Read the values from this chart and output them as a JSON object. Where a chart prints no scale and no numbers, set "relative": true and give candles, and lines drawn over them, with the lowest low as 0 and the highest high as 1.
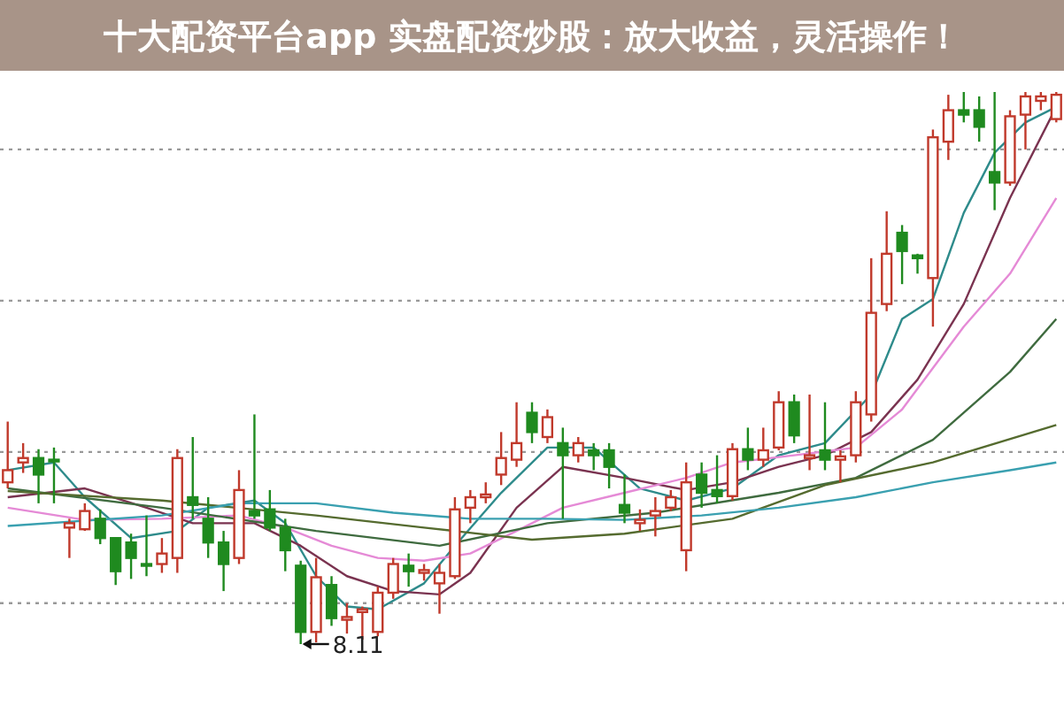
{
  "chart_data": {
    "type": "candlestick",
    "title": "十大配资平台app 实盘配资炒股：放大收益，灵活操作！",
    "relative": true,
    "categories": [
      null,
      null,
      null,
      null,
      null,
      null,
      null,
      null,
      null,
      null,
      null,
      null,
      null,
      null,
      null,
      null,
      null,
      null,
      null,
      null,
      null,
      null,
      null,
      null,
      null,
      null,
      null,
      null,
      null,
      null,
      null,
      null,
      null,
      null,
      null,
      null,
      null,
      null,
      null,
      null,
      null,
      null,
      null,
      null,
      null,
      null,
      null,
      null,
      null,
      null,
      null,
      null,
      null,
      null,
      null,
      null,
      null,
      null,
      null,
      null,
      null,
      null,
      null,
      null,
      null,
      null,
      null,
      null,
      null
    ],
    "ohlc": [
      [
        0.293,
        0.403,
        0.282,
        0.315
      ],
      [
        0.329,
        0.364,
        0.31,
        0.337
      ],
      [
        0.337,
        0.353,
        0.255,
        0.307
      ],
      [
        0.334,
        0.356,
        0.255,
        0.332
      ],
      [
        0.211,
        0.227,
        0.156,
        0.219
      ],
      [
        0.208,
        0.255,
        0.205,
        0.241
      ],
      [
        0.227,
        0.244,
        0.181,
        0.192
      ],
      [
        0.192,
        0.192,
        0.107,
        0.132
      ],
      [
        0.184,
        0.2,
        0.118,
        0.156
      ],
      [
        0.145,
        0.233,
        0.123,
        0.142
      ],
      [
        0.145,
        0.192,
        0.129,
        0.164
      ],
      [
        0.156,
        0.353,
        0.129,
        0.337
      ],
      [
        0.266,
        0.375,
        0.227,
        0.252
      ],
      [
        0.227,
        0.266,
        0.156,
        0.184
      ],
      [
        0.184,
        0.205,
        0.096,
        0.145
      ],
      [
        0.156,
        0.315,
        0.145,
        0.279
      ],
      [
        0.241,
        0.416,
        0.227,
        0.233
      ],
      [
        0.244,
        0.279,
        0.205,
        0.211
      ],
      [
        0.211,
        0.227,
        0.132,
        0.17
      ],
      [
        0.142,
        0.151,
        0,
        0.022
      ],
      [
        0.022,
        0.156,
        0.003,
        0.121
      ],
      [
        0.107,
        0.123,
        0.033,
        0.047
      ],
      [
        0.044,
        0.074,
        0.019,
        0.049
      ],
      [
        0.058,
        0.068,
        0.008,
        0.063
      ],
      [
        0.022,
        0.104,
        0.014,
        0.093
      ],
      [
        0.093,
        0.156,
        0.082,
        0.145
      ],
      [
        0.142,
        0.164,
        0.104,
        0.132
      ],
      [
        0.129,
        0.145,
        0.115,
        0.134
      ],
      [
        0.11,
        0.145,
        0.055,
        0.129
      ],
      [
        0.123,
        0.266,
        0.118,
        0.244
      ],
      [
        0.247,
        0.279,
        0.219,
        0.266
      ],
      [
        0.266,
        0.293,
        0.255,
        0.271
      ],
      [
        0.307,
        0.384,
        0.288,
        0.337
      ],
      [
        0.334,
        0.438,
        0.321,
        0.364
      ],
      [
        0.419,
        0.438,
        0.364,
        0.384
      ],
      [
        0.375,
        0.425,
        0.364,
        0.411
      ],
      [
        0.364,
        0.392,
        0.227,
        0.342
      ],
      [
        0.342,
        0.375,
        0.329,
        0.364
      ],
      [
        0.351,
        0.364,
        0.315,
        0.342
      ],
      [
        0.351,
        0.364,
        0.282,
        0.321
      ],
      [
        0.252,
        0.307,
        0.219,
        0.238
      ],
      [
        0.219,
        0.244,
        0.205,
        0.225
      ],
      [
        0.233,
        0.266,
        0.195,
        0.241
      ],
      [
        0.247,
        0.279,
        0.241,
        0.266
      ],
      [
        0.17,
        0.329,
        0.132,
        0.293
      ],
      [
        0.307,
        0.329,
        0.247,
        0.274
      ],
      [
        0.279,
        0.342,
        0.255,
        0.268
      ],
      [
        0.268,
        0.364,
        0.26,
        0.353
      ],
      [
        0.353,
        0.392,
        0.315,
        0.334
      ],
      [
        0.334,
        0.392,
        0.321,
        0.351
      ],
      [
        0.356,
        0.458,
        0.351,
        0.438
      ],
      [
        0.438,
        0.452,
        0.364,
        0.378
      ],
      [
        0.337,
        0.452,
        0.315,
        0.342
      ],
      [
        0.351,
        0.438,
        0.315,
        0.334
      ],
      [
        0.334,
        0.351,
        0.293,
        0.34
      ],
      [
        0.342,
        0.458,
        0.329,
        0.438
      ],
      [
        0.416,
        0.699,
        0.403,
        0.6
      ],
      [
        0.616,
        0.784,
        0.603,
        0.707
      ],
      [
        0.745,
        0.759,
        0.652,
        0.712
      ],
      [
        0.704,
        0.707,
        0.671,
        0.699
      ],
      [
        0.663,
        0.932,
        0.575,
        0.918
      ],
      [
        0.91,
        0.995,
        0.877,
        0.967
      ],
      [
        0.967,
        1,
        0.945,
        0.959
      ],
      [
        0.967,
        0.992,
        0.91,
        0.937
      ],
      [
        0.855,
        1,
        0.786,
        0.836
      ],
      [
        0.836,
        0.967,
        0.83,
        0.956
      ],
      [
        0.959,
        1,
        0.896,
        0.992
      ],
      [
        0.984,
        1,
        0.967,
        0.992
      ],
      [
        0.951,
        1,
        0.945,
        0.995
      ]
    ],
    "series": [
      {
        "type": "line",
        "color": "#2e8b8b",
        "values": [
          0.315,
          null,
          null,
          0.329,
          null,
          0.266,
          null,
          null,
          0.192,
          null,
          null,
          0.205,
          null,
          0.247,
          null,
          null,
          0.26,
          null,
          0.219,
          null,
          0.123,
          null,
          0.068,
          null,
          0.063,
          null,
          null,
          0.11,
          null,
          0.178,
          null,
          null,
          0.274,
          null,
          null,
          0.356,
          null,
          null,
          0.356,
          null,
          null,
          0.282,
          null,
          null,
          0.26,
          null,
          null,
          0.282,
          null,
          null,
          0.342,
          null,
          null,
          0.364,
          null,
          null,
          0.452,
          null,
          0.589,
          null,
          0.625,
          null,
          0.781,
          null,
          0.89,
          null,
          0.945,
          null,
          0.973
        ]
      },
      {
        "type": "line",
        "color": "#7a3350",
        "values": [
          0.266,
          null,
          null,
          null,
          null,
          0.282,
          null,
          null,
          null,
          0.247,
          null,
          null,
          0.219,
          null,
          null,
          null,
          0.219,
          null,
          null,
          0.178,
          null,
          null,
          0.123,
          null,
          null,
          0.096,
          null,
          null,
          0.09,
          null,
          0.129,
          null,
          null,
          0.247,
          null,
          null,
          0.321,
          null,
          null,
          null,
          0.301,
          null,
          null,
          null,
          0.279,
          null,
          null,
          0.293,
          null,
          null,
          0.321,
          null,
          null,
          0.342,
          null,
          null,
          0.384,
          null,
          null,
          0.479,
          null,
          null,
          0.616,
          null,
          null,
          0.808,
          null,
          null,
          0.973
        ]
      },
      {
        "type": "line",
        "color": "#e58ad6",
        "values": [
          0.247,
          null,
          null,
          null,
          null,
          0.225,
          null,
          null,
          null,
          null,
          0.227,
          null,
          null,
          null,
          null,
          0.233,
          null,
          null,
          0.211,
          null,
          null,
          0.178,
          null,
          null,
          0.156,
          null,
          null,
          0.151,
          null,
          null,
          0.164,
          null,
          null,
          0.205,
          null,
          null,
          0.247,
          null,
          null,
          null,
          0.274,
          null,
          null,
          null,
          0.301,
          null,
          null,
          0.329,
          null,
          null,
          null,
          0.342,
          null,
          null,
          null,
          0.356,
          null,
          null,
          0.425,
          null,
          null,
          null,
          0.575,
          null,
          null,
          0.671,
          null,
          null,
          0.808
        ]
      },
      {
        "type": "line",
        "color": "#3f6b3f",
        "values": [
          0.282,
          null,
          null,
          null,
          null,
          null,
          null,
          null,
          null,
          null,
          0.247,
          null,
          null,
          null,
          null,
          null,
          null,
          null,
          null,
          null,
          0.205,
          null,
          null,
          null,
          null,
          null,
          null,
          null,
          0.178,
          null,
          null,
          null,
          null,
          null,
          null,
          0.219,
          null,
          null,
          null,
          null,
          null,
          null,
          0.238,
          null,
          null,
          null,
          null,
          null,
          null,
          null,
          0.274,
          null,
          null,
          null,
          null,
          0.301,
          null,
          null,
          null,
          null,
          0.37,
          null,
          null,
          null,
          null,
          0.493,
          null,
          null,
          0.589
        ]
      },
      {
        "type": "line",
        "color": "#556b2f",
        "values": [
          0.277,
          null,
          null,
          null,
          null,
          null,
          null,
          null,
          null,
          null,
          0.26,
          null,
          null,
          null,
          null,
          null,
          null,
          null,
          null,
          null,
          0.233,
          null,
          null,
          null,
          null,
          null,
          null,
          0.211,
          null,
          null,
          null,
          null,
          null,
          null,
          0.189,
          null,
          null,
          null,
          null,
          null,
          0.2,
          null,
          null,
          null,
          null,
          null,
          null,
          0.227,
          null,
          null,
          null,
          null,
          null,
          0.288,
          null,
          null,
          null,
          null,
          null,
          null,
          0.329,
          null,
          null,
          null,
          null,
          null,
          null,
          null,
          0.397
        ]
      },
      {
        "type": "line",
        "color": "#3aa0b0",
        "values": [
          0.214,
          null,
          null,
          null,
          null,
          null,
          null,
          null,
          null,
          null,
          0.233,
          null,
          null,
          null,
          null,
          0.255,
          null,
          null,
          null,
          null,
          0.255,
          null,
          null,
          null,
          null,
          0.238,
          null,
          null,
          null,
          null,
          0.227,
          null,
          null,
          null,
          null,
          0.227,
          null,
          null,
          null,
          null,
          0.225,
          null,
          null,
          null,
          null,
          0.233,
          null,
          null,
          null,
          null,
          0.247,
          null,
          null,
          null,
          null,
          0.266,
          null,
          null,
          null,
          null,
          0.293,
          null,
          null,
          null,
          null,
          0.315,
          null,
          null,
          0.329
        ]
      }
    ],
    "ref_lines": [
      {
        "axis": "y",
        "value": 0.896,
        "color": "#999999",
        "line_style": "dotted"
      },
      {
        "axis": "y",
        "value": 0.622,
        "color": "#999999",
        "line_style": "dotted"
      },
      {
        "axis": "y",
        "value": 0.348,
        "color": "#999999",
        "line_style": "dotted"
      },
      {
        "axis": "y",
        "value": 0.074,
        "color": "#999999",
        "line_style": "dotted"
      }
    ],
    "annotations": [
      {
        "text": "8.11",
        "y": 0
      }
    ]
  }
}
